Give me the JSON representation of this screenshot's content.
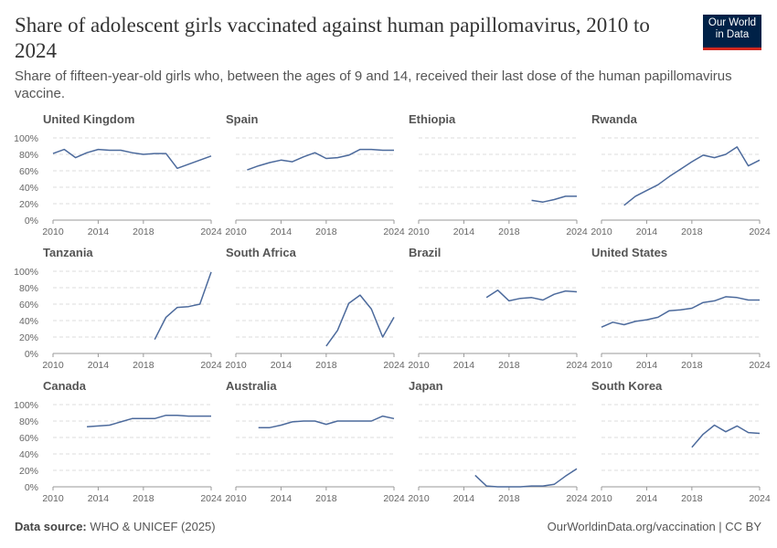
{
  "header": {
    "title": "Share of adolescent girls vaccinated against human papillomavirus, 2010 to 2024",
    "subtitle": "Share of fifteen-year-old girls who, between the ages of 9 and 14, received their last dose of the human papillomavirus vaccine.",
    "logo": "Our World in Data"
  },
  "footer": {
    "source_label": "Data source:",
    "source": "WHO & UNICEF (2025)",
    "url": "OurWorldinData.org/vaccination | CC BY"
  },
  "chart_data": [
    {
      "type": "line",
      "title": "United Kingdom",
      "color": "#4c6a9c",
      "x": [
        2010,
        2011,
        2012,
        2013,
        2014,
        2015,
        2016,
        2017,
        2018,
        2019,
        2020,
        2021,
        2022,
        2023,
        2024
      ],
      "values": [
        81,
        86,
        76,
        82,
        86,
        85,
        85,
        82,
        80,
        81,
        81,
        63,
        68,
        73,
        78
      ],
      "xlim": [
        2010,
        2024
      ],
      "xticks": [
        2010,
        2014,
        2018,
        2024
      ],
      "ylim": [
        0,
        100
      ],
      "yticks": [
        {
          "value": 0,
          "label": "0%"
        },
        {
          "value": 20,
          "label": "20%"
        },
        {
          "value": 40,
          "label": "40%"
        },
        {
          "value": 60,
          "label": "60%"
        },
        {
          "value": 80,
          "label": "80%"
        },
        {
          "value": 100,
          "label": "100%"
        }
      ],
      "grid": true
    },
    {
      "type": "line",
      "title": "Spain",
      "color": "#4c6a9c",
      "x": [
        2011,
        2012,
        2013,
        2014,
        2015,
        2016,
        2017,
        2018,
        2019,
        2020,
        2021,
        2022,
        2023,
        2024
      ],
      "values": [
        61,
        66,
        70,
        73,
        71,
        77,
        82,
        75,
        76,
        79,
        86,
        86,
        85,
        85
      ],
      "xlim": [
        2010,
        2024
      ],
      "xticks": [
        2010,
        2014,
        2018,
        2024
      ],
      "ylim": [
        0,
        100
      ],
      "yticks": [
        0,
        20,
        40,
        60,
        80,
        100
      ],
      "grid": true
    },
    {
      "type": "line",
      "title": "Ethiopia",
      "color": "#4c6a9c",
      "x": [
        2020,
        2021,
        2022,
        2023,
        2024
      ],
      "values": [
        24,
        22,
        25,
        29,
        29
      ],
      "xlim": [
        2010,
        2024
      ],
      "xticks": [
        2010,
        2014,
        2018,
        2024
      ],
      "ylim": [
        0,
        100
      ],
      "yticks": [
        0,
        20,
        40,
        60,
        80,
        100
      ],
      "grid": true
    },
    {
      "type": "line",
      "title": "Rwanda",
      "color": "#4c6a9c",
      "x": [
        2012,
        2013,
        2014,
        2015,
        2016,
        2017,
        2018,
        2019,
        2020,
        2021,
        2022,
        2023,
        2024
      ],
      "values": [
        18,
        29,
        36,
        43,
        53,
        62,
        71,
        79,
        76,
        80,
        89,
        66,
        73
      ],
      "xlim": [
        2010,
        2024
      ],
      "xticks": [
        2010,
        2014,
        2018,
        2024
      ],
      "ylim": [
        0,
        100
      ],
      "yticks": [
        0,
        20,
        40,
        60,
        80,
        100
      ],
      "grid": true
    },
    {
      "type": "line",
      "title": "Tanzania",
      "color": "#4c6a9c",
      "x": [
        2019,
        2020,
        2021,
        2022,
        2023,
        2024
      ],
      "values": [
        17,
        44,
        56,
        57,
        60,
        99
      ],
      "xlim": [
        2010,
        2024
      ],
      "xticks": [
        2010,
        2014,
        2018,
        2024
      ],
      "ylim": [
        0,
        100
      ],
      "yticks": [
        {
          "value": 0,
          "label": "0%"
        },
        {
          "value": 20,
          "label": "20%"
        },
        {
          "value": 40,
          "label": "40%"
        },
        {
          "value": 60,
          "label": "60%"
        },
        {
          "value": 80,
          "label": "80%"
        },
        {
          "value": 100,
          "label": "100%"
        }
      ],
      "grid": true
    },
    {
      "type": "line",
      "title": "South Africa",
      "color": "#4c6a9c",
      "x": [
        2018,
        2019,
        2020,
        2021,
        2022,
        2023,
        2024
      ],
      "values": [
        9,
        28,
        61,
        71,
        54,
        20,
        44
      ],
      "xlim": [
        2010,
        2024
      ],
      "xticks": [
        2010,
        2014,
        2018,
        2024
      ],
      "ylim": [
        0,
        100
      ],
      "yticks": [
        0,
        20,
        40,
        60,
        80,
        100
      ],
      "grid": true
    },
    {
      "type": "line",
      "title": "Brazil",
      "color": "#4c6a9c",
      "x": [
        2016,
        2017,
        2018,
        2019,
        2020,
        2021,
        2022,
        2023,
        2024
      ],
      "values": [
        68,
        77,
        64,
        67,
        68,
        65,
        72,
        76,
        75
      ],
      "xlim": [
        2010,
        2024
      ],
      "xticks": [
        2010,
        2014,
        2018,
        2024
      ],
      "ylim": [
        0,
        100
      ],
      "yticks": [
        0,
        20,
        40,
        60,
        80,
        100
      ],
      "grid": true
    },
    {
      "type": "line",
      "title": "United States",
      "color": "#4c6a9c",
      "x": [
        2010,
        2011,
        2012,
        2013,
        2014,
        2015,
        2016,
        2017,
        2018,
        2019,
        2020,
        2021,
        2022,
        2023,
        2024
      ],
      "values": [
        32,
        38,
        35,
        39,
        41,
        44,
        52,
        53,
        55,
        62,
        64,
        69,
        68,
        65,
        65
      ],
      "xlim": [
        2010,
        2024
      ],
      "xticks": [
        2010,
        2014,
        2018,
        2024
      ],
      "ylim": [
        0,
        100
      ],
      "yticks": [
        0,
        20,
        40,
        60,
        80,
        100
      ],
      "grid": true
    },
    {
      "type": "line",
      "title": "Canada",
      "color": "#4c6a9c",
      "x": [
        2013,
        2014,
        2015,
        2016,
        2017,
        2018,
        2019,
        2020,
        2021,
        2022,
        2023,
        2024
      ],
      "values": [
        73,
        74,
        75,
        79,
        83,
        83,
        83,
        87,
        87,
        86,
        86,
        86
      ],
      "xlim": [
        2010,
        2024
      ],
      "xticks": [
        2010,
        2014,
        2018,
        2024
      ],
      "ylim": [
        0,
        100
      ],
      "yticks": [
        {
          "value": 0,
          "label": "0%"
        },
        {
          "value": 20,
          "label": "20%"
        },
        {
          "value": 40,
          "label": "40%"
        },
        {
          "value": 60,
          "label": "60%"
        },
        {
          "value": 80,
          "label": "80%"
        },
        {
          "value": 100,
          "label": "100%"
        }
      ],
      "grid": true
    },
    {
      "type": "line",
      "title": "Australia",
      "color": "#4c6a9c",
      "x": [
        2012,
        2013,
        2014,
        2015,
        2016,
        2017,
        2018,
        2019,
        2020,
        2021,
        2022,
        2023,
        2024
      ],
      "values": [
        72,
        72,
        75,
        79,
        80,
        80,
        76,
        80,
        80,
        80,
        80,
        86,
        83
      ],
      "xlim": [
        2010,
        2024
      ],
      "xticks": [
        2010,
        2014,
        2018,
        2024
      ],
      "ylim": [
        0,
        100
      ],
      "yticks": [
        0,
        20,
        40,
        60,
        80,
        100
      ],
      "grid": true
    },
    {
      "type": "line",
      "title": "Japan",
      "color": "#4c6a9c",
      "x": [
        2015,
        2016,
        2017,
        2018,
        2019,
        2020,
        2021,
        2022,
        2023,
        2024
      ],
      "values": [
        14,
        1,
        0,
        0,
        0,
        1,
        1,
        3,
        13,
        22
      ],
      "xlim": [
        2010,
        2024
      ],
      "xticks": [
        2010,
        2014,
        2018,
        2024
      ],
      "ylim": [
        0,
        100
      ],
      "yticks": [
        0,
        20,
        40,
        60,
        80,
        100
      ],
      "grid": true
    },
    {
      "type": "line",
      "title": "South Korea",
      "color": "#4c6a9c",
      "x": [
        2018,
        2019,
        2020,
        2021,
        2022,
        2023,
        2024
      ],
      "values": [
        48,
        64,
        75,
        67,
        74,
        66,
        65
      ],
      "xlim": [
        2010,
        2024
      ],
      "xticks": [
        2010,
        2014,
        2018,
        2024
      ],
      "ylim": [
        0,
        100
      ],
      "yticks": [
        0,
        20,
        40,
        60,
        80,
        100
      ],
      "grid": true
    }
  ]
}
